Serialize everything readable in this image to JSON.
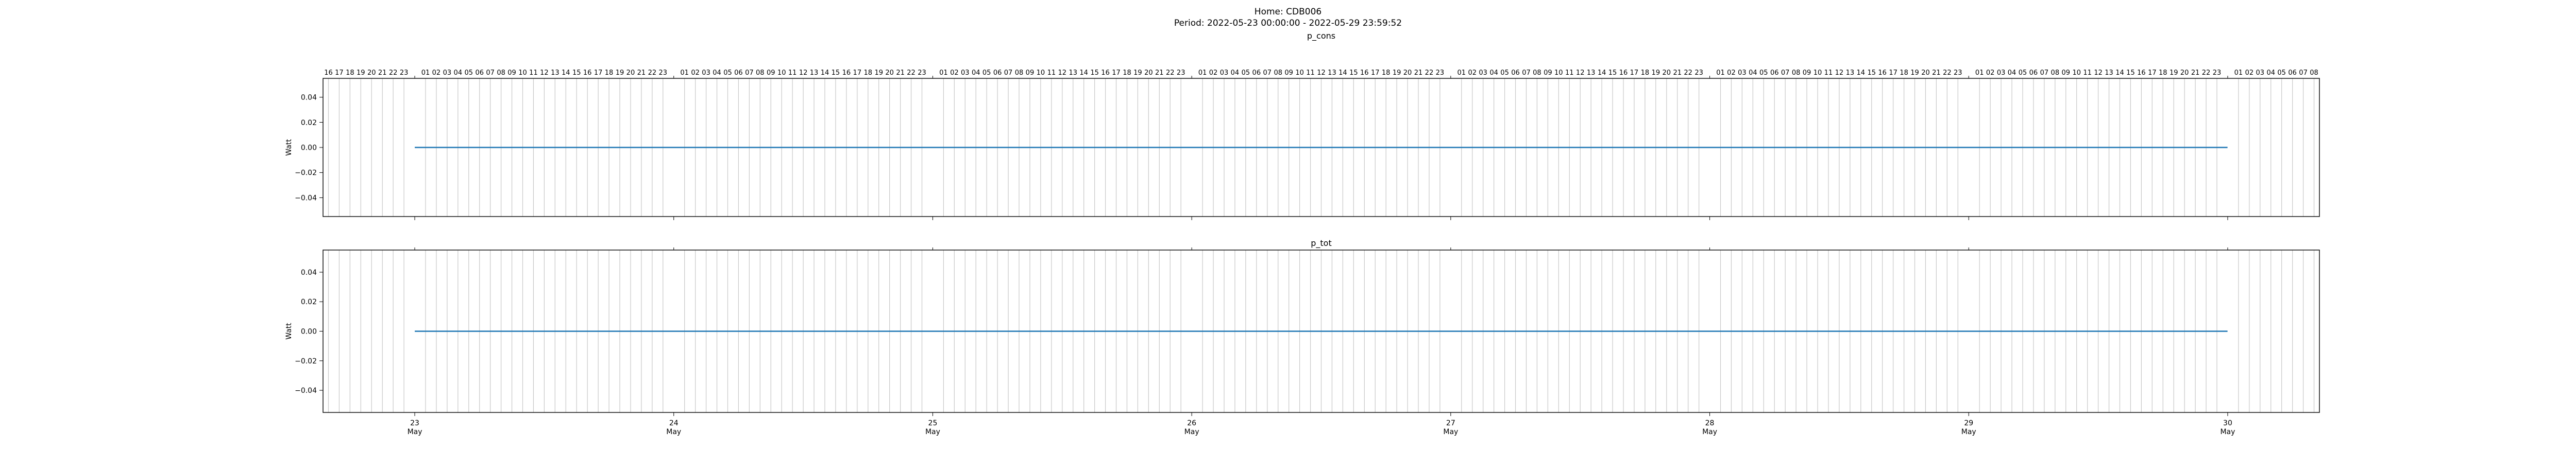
{
  "figure": {
    "title_line1": "Home: CDB006",
    "title_line2": "Period: 2022-05-23 00:00:00 - 2022-05-29 23:59:52"
  },
  "chart_data": [
    {
      "type": "line",
      "title": "p_cons",
      "xlabel": "",
      "ylabel": "Watt",
      "ylim": [
        -0.055,
        0.055
      ],
      "yticks": [
        -0.04,
        -0.02,
        0.0,
        0.02,
        0.04
      ],
      "ytick_labels": [
        "−0.04",
        "−0.02",
        "0.00",
        "0.02",
        "0.04"
      ],
      "xlim": [
        "2022-05-22 15:30",
        "2022-05-30 08:30"
      ],
      "grid": "vertical lines at each hour",
      "top_hour_labels": true,
      "bottom_date_labels": false,
      "series": [
        {
          "color": "#1f77b4",
          "x": [
            "2022-05-23 00:00",
            "2022-05-29 23:59"
          ],
          "y": [
            0.0,
            0.0
          ]
        }
      ]
    },
    {
      "type": "line",
      "title": "p_tot",
      "xlabel": "",
      "ylabel": "Watt",
      "ylim": [
        -0.055,
        0.055
      ],
      "yticks": [
        -0.04,
        -0.02,
        0.0,
        0.02,
        0.04
      ],
      "ytick_labels": [
        "−0.04",
        "−0.02",
        "0.00",
        "0.02",
        "0.04"
      ],
      "xlim": [
        "2022-05-22 15:30",
        "2022-05-30 08:30"
      ],
      "grid": "vertical lines at each hour",
      "top_hour_labels": false,
      "bottom_date_labels": true,
      "series": [
        {
          "color": "#1f77b4",
          "x": [
            "2022-05-23 00:00",
            "2022-05-29 23:59"
          ],
          "y": [
            0.0,
            0.0
          ]
        }
      ]
    }
  ],
  "date_ticks": [
    {
      "at": "2022-05-23",
      "day": "23",
      "month": "May"
    },
    {
      "at": "2022-05-24",
      "day": "24",
      "month": "May"
    },
    {
      "at": "2022-05-25",
      "day": "25",
      "month": "May"
    },
    {
      "at": "2022-05-26",
      "day": "26",
      "month": "May"
    },
    {
      "at": "2022-05-27",
      "day": "27",
      "month": "May"
    },
    {
      "at": "2022-05-28",
      "day": "28",
      "month": "May"
    },
    {
      "at": "2022-05-29",
      "day": "29",
      "month": "May"
    },
    {
      "at": "2022-05-30",
      "day": "30",
      "month": "May"
    }
  ],
  "colors": {
    "line": "#1f77b4",
    "grid": "#c8c8c8",
    "axes": "#000000"
  }
}
